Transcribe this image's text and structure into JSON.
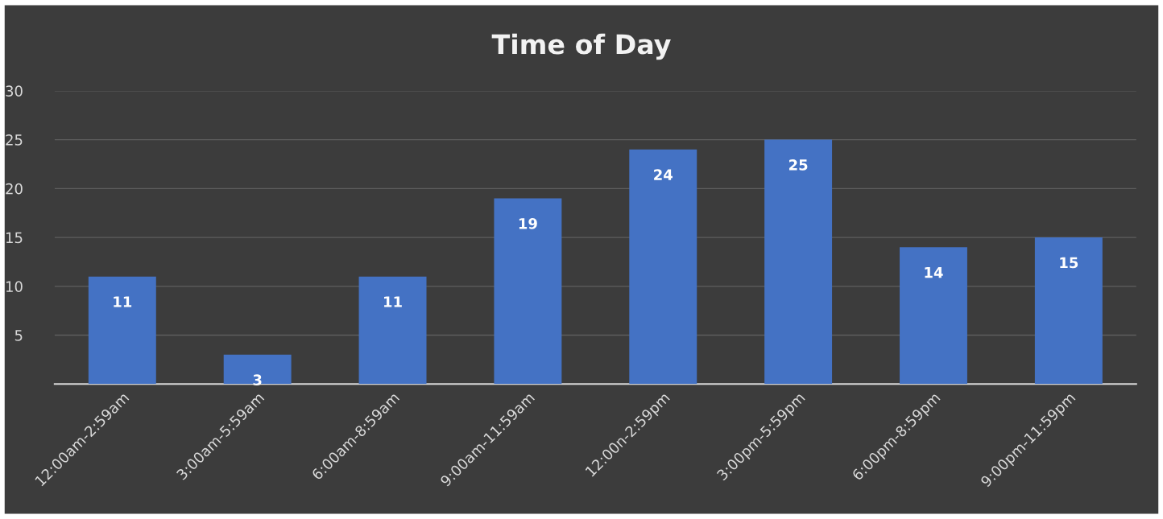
{
  "chart_data": {
    "type": "bar",
    "title": "Time of Day",
    "categories": [
      "12:00am-2:59am",
      "3:00am-5:59am",
      "6:00am-8:59am",
      "9:00am-11:59am",
      "12:00n-2:59pm",
      "3:00pm-5:59pm",
      "6:00pm-8:59pm",
      "9:00pm-11:59pm"
    ],
    "values": [
      11,
      3,
      11,
      19,
      24,
      25,
      14,
      15
    ],
    "color": "#4472c4",
    "ylim": [
      0,
      30
    ],
    "yticks": [
      5,
      10,
      15,
      20,
      25,
      30
    ],
    "grid": "y",
    "data_labels": true,
    "legend": false
  }
}
